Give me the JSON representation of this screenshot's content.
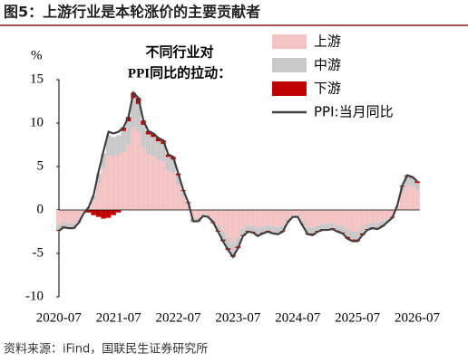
{
  "chart_data": {
    "type": "bar",
    "stacked": true,
    "title": "图5：上游行业是本轮涨价的主要贡献者",
    "annotation": [
      "不同行业对",
      "PPI同比的拉动："
    ],
    "y_unit": "%",
    "source": "资料来源：iFind，国联民生证券研究所",
    "categories": [
      "2020-07",
      null,
      null,
      null,
      null,
      null,
      null,
      null,
      null,
      null,
      null,
      null,
      "2021-07",
      null,
      null,
      null,
      null,
      null,
      null,
      null,
      null,
      null,
      null,
      null,
      "2022-07",
      null,
      null,
      null,
      null,
      null,
      null,
      null,
      null,
      null,
      null,
      null,
      "2023-07",
      null,
      null,
      null,
      null,
      null,
      null,
      null,
      null,
      null,
      null,
      null,
      "2024-07",
      null,
      null,
      null,
      null,
      null,
      null,
      null,
      null,
      null,
      null,
      null,
      "2025-07",
      null,
      null,
      null,
      null,
      null,
      null,
      null,
      null,
      null,
      null,
      null,
      "2026-07"
    ],
    "series": [
      {
        "name": "上游",
        "type": "bar",
        "color": "#f4c4c4",
        "values": [
          -1.7,
          -1.4,
          -1.5,
          -1.5,
          -1.1,
          -0.3,
          0.2,
          1.2,
          3.1,
          4.8,
          6.3,
          6.2,
          6.3,
          6.7,
          7.5,
          9.5,
          9.0,
          7.2,
          6.4,
          6.2,
          5.8,
          5.6,
          4.5,
          4.3,
          2.9,
          1.6,
          0.6,
          -0.9,
          -0.9,
          -0.5,
          -0.6,
          -1.0,
          -1.8,
          -2.5,
          -3.2,
          -3.8,
          -3.1,
          -2.1,
          -1.8,
          -1.8,
          -2.1,
          -1.9,
          -1.8,
          -1.9,
          -2.0,
          -1.8,
          -1.0,
          -0.6,
          -0.6,
          -1.3,
          -2.0,
          -2.0,
          -1.8,
          -1.6,
          -1.6,
          -1.5,
          -1.8,
          -1.9,
          -2.3,
          -2.5,
          -2.5,
          -2.0,
          -1.6,
          -1.5,
          -1.5,
          -1.3,
          -1.0,
          -0.6,
          0.4,
          2.0,
          2.8,
          2.7,
          2.3
        ]
      },
      {
        "name": "中游",
        "type": "bar",
        "color": "#c9c9c9",
        "values": [
          -0.6,
          -0.5,
          -0.5,
          -0.5,
          -0.4,
          -0.1,
          0.1,
          0.4,
          1.1,
          1.7,
          2.3,
          2.2,
          2.3,
          2.4,
          2.7,
          3.4,
          3.2,
          2.6,
          2.3,
          2.2,
          2.1,
          2.0,
          1.6,
          1.5,
          1.1,
          0.6,
          0.2,
          -0.3,
          -0.3,
          -0.2,
          -0.2,
          -0.4,
          -0.6,
          -0.9,
          -1.2,
          -1.4,
          -1.1,
          -0.8,
          -0.6,
          -0.7,
          -0.8,
          -0.7,
          -0.6,
          -0.7,
          -0.7,
          -0.6,
          -0.4,
          -0.2,
          -0.2,
          -0.5,
          -0.7,
          -0.7,
          -0.6,
          -0.6,
          -0.6,
          -0.6,
          -0.6,
          -0.7,
          -0.8,
          -0.9,
          -0.9,
          -0.7,
          -0.6,
          -0.5,
          -0.6,
          -0.5,
          -0.4,
          -0.2,
          0.1,
          0.7,
          1.0,
          1.0,
          0.8
        ]
      },
      {
        "name": "下游",
        "type": "bar",
        "color": "#c00000",
        "values": [
          -0.1,
          -0.1,
          -0.1,
          -0.1,
          0,
          0,
          -0.3,
          -0.6,
          -0.8,
          -1.0,
          -0.9,
          -0.6,
          -0.3,
          0.4,
          0.5,
          0.6,
          0.7,
          0.5,
          0.4,
          0.4,
          0.4,
          0.4,
          0.3,
          0.3,
          0.2,
          0.1,
          0.1,
          -0.1,
          -0.1,
          0,
          0,
          -0.1,
          -0.1,
          -0.2,
          -0.2,
          -0.2,
          -0.2,
          -0.1,
          -0.1,
          -0.1,
          -0.1,
          -0.1,
          -0.1,
          -0.1,
          -0.1,
          -0.1,
          0,
          0,
          0,
          0,
          -0.1,
          -0.2,
          -0.1,
          -0.1,
          -0.1,
          -0.1,
          -0.1,
          -0.1,
          -0.2,
          -0.2,
          -0.2,
          -0.2,
          -0.1,
          -0.1,
          -0.1,
          -0.1,
          0,
          -0.1,
          0,
          0.1,
          0.2,
          0.1,
          0.2
        ]
      },
      {
        "name": "PPI:当月同比",
        "type": "line",
        "color": "#404040",
        "values": [
          -2.4,
          -2.0,
          -2.1,
          -2.1,
          -1.5,
          -0.4,
          0.3,
          1.7,
          4.4,
          6.8,
          9.0,
          8.8,
          9.0,
          9.5,
          10.7,
          13.5,
          12.9,
          10.3,
          9.1,
          8.8,
          8.3,
          8.0,
          6.4,
          6.1,
          4.2,
          2.3,
          0.9,
          -1.3,
          -1.3,
          -0.7,
          -0.8,
          -1.4,
          -2.5,
          -3.6,
          -4.6,
          -5.4,
          -4.4,
          -3.0,
          -2.5,
          -2.6,
          -3.0,
          -2.7,
          -2.5,
          -2.7,
          -2.8,
          -2.5,
          -1.4,
          -0.8,
          -0.8,
          -1.8,
          -2.8,
          -2.9,
          -2.5,
          -2.3,
          -2.3,
          -2.2,
          -2.5,
          -2.7,
          -3.3,
          -3.6,
          -3.6,
          -2.9,
          -2.3,
          -2.1,
          -2.2,
          -1.9,
          -1.4,
          -0.9,
          0.5,
          2.8,
          4.0,
          3.8,
          3.3
        ]
      }
    ],
    "ylim": [
      -10,
      15
    ],
    "yticks": [
      15,
      10,
      5,
      0,
      -5,
      -10
    ],
    "legend": "upper right",
    "grid": false
  }
}
